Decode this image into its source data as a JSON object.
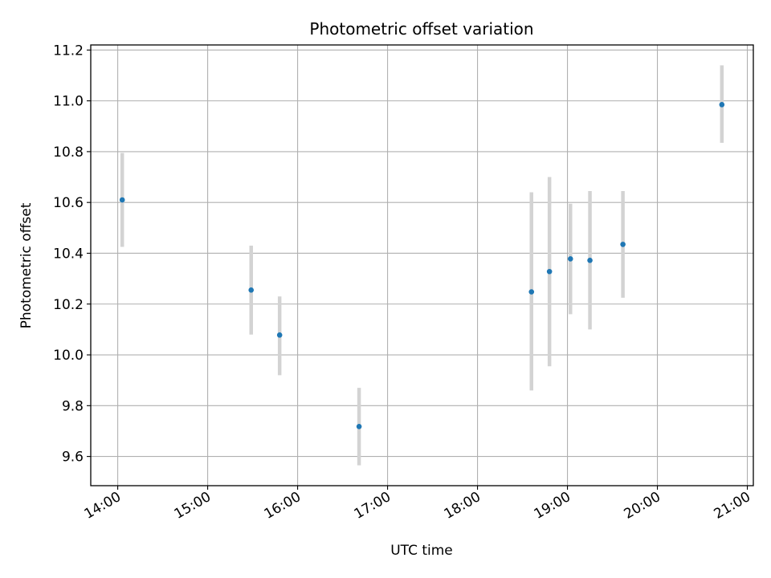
{
  "chart_data": {
    "type": "scatter",
    "title": "Photometric offset variation",
    "xlabel": "UTC time",
    "ylabel": "Photometric offset",
    "x_ticks": [
      "14:00",
      "15:00",
      "16:00",
      "17:00",
      "18:00",
      "19:00",
      "20:00",
      "21:00"
    ],
    "y_ticks": [
      "9.6",
      "9.8",
      "10.0",
      "10.2",
      "10.4",
      "10.6",
      "10.8",
      "11.0",
      "11.2"
    ],
    "xlim": [
      "13:42",
      "21:04"
    ],
    "ylim": [
      9.485,
      11.22
    ],
    "grid": true,
    "marker_color": "#1f77b4",
    "errorbar_color": "#d3d3d3",
    "points": [
      {
        "x": "14:03",
        "y": 10.61,
        "yerr_low": 10.425,
        "yerr_high": 10.795
      },
      {
        "x": "15:29",
        "y": 10.255,
        "yerr_low": 10.08,
        "yerr_high": 10.43
      },
      {
        "x": "15:48",
        "y": 10.078,
        "yerr_low": 9.92,
        "yerr_high": 10.23
      },
      {
        "x": "16:41",
        "y": 9.718,
        "yerr_low": 9.565,
        "yerr_high": 9.87
      },
      {
        "x": "18:36",
        "y": 10.248,
        "yerr_low": 9.86,
        "yerr_high": 10.64
      },
      {
        "x": "18:48",
        "y": 10.328,
        "yerr_low": 9.955,
        "yerr_high": 10.7
      },
      {
        "x": "19:02",
        "y": 10.378,
        "yerr_low": 10.16,
        "yerr_high": 10.595
      },
      {
        "x": "19:15",
        "y": 10.372,
        "yerr_low": 10.1,
        "yerr_high": 10.645
      },
      {
        "x": "19:37",
        "y": 10.435,
        "yerr_low": 10.225,
        "yerr_high": 10.645
      },
      {
        "x": "20:43",
        "y": 10.985,
        "yerr_low": 10.835,
        "yerr_high": 11.14
      }
    ]
  }
}
